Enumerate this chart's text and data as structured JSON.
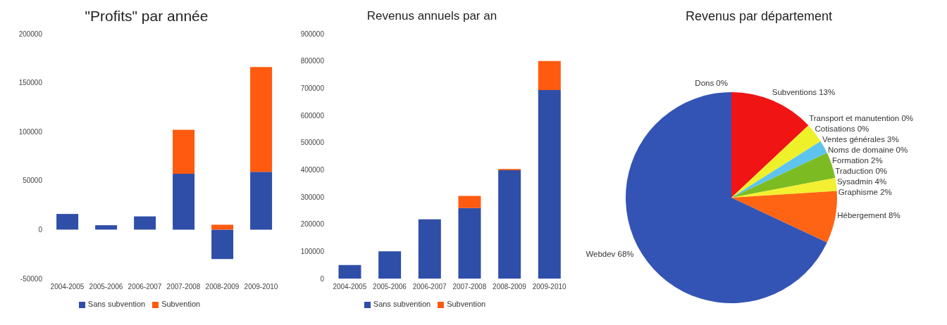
{
  "chart_data": [
    {
      "type": "bar",
      "title": "\"Profits\" par année",
      "categories": [
        "2004-2005",
        "2005-2006",
        "2006-2007",
        "2007-2008",
        "2008-2009",
        "2009-2010"
      ],
      "stacked": true,
      "series": [
        {
          "name": "Sans subvention",
          "color": "#2f4ea8",
          "values": [
            16000,
            4500,
            13500,
            57000,
            -30000,
            59000
          ]
        },
        {
          "name": "Subvention",
          "color": "#ff5a0f",
          "values": [
            null,
            null,
            null,
            45000,
            5000,
            107000
          ]
        }
      ],
      "ylim": [
        -50000,
        200000
      ],
      "yticks": [
        -50000,
        0,
        50000,
        100000,
        150000,
        200000
      ],
      "grid": false,
      "legend": "bottom"
    },
    {
      "type": "bar",
      "title": "Revenus annuels par an",
      "categories": [
        "2004-2005",
        "2005-2006",
        "2006-2007",
        "2007-2008",
        "2008-2009",
        "2009-2010"
      ],
      "stacked": true,
      "series": [
        {
          "name": "Sans subvention",
          "color": "#2f4ea8",
          "values": [
            50000,
            100000,
            218000,
            259000,
            398000,
            693000
          ]
        },
        {
          "name": "Subvention",
          "color": "#ff5a0f",
          "values": [
            null,
            null,
            null,
            45000,
            5000,
            107000
          ]
        }
      ],
      "ylim": [
        0,
        900000
      ],
      "yticks": [
        0,
        100000,
        200000,
        300000,
        400000,
        500000,
        600000,
        700000,
        800000,
        900000
      ],
      "grid": false,
      "legend": "bottom"
    },
    {
      "type": "pie",
      "title": "Revenus par département",
      "categories": [
        "Subventions",
        "Transport et manutention",
        "Cotisations",
        "Ventes générales",
        "Noms de domaine",
        "Formation",
        "Traduction",
        "Sysadmin",
        "Graphisme",
        "Hébergement",
        "Webdev",
        "Dons"
      ],
      "values": [
        13,
        0,
        0,
        3,
        0,
        2,
        0,
        4,
        2,
        8,
        68,
        0
      ],
      "value_labels": [
        "13%",
        "0%",
        "0%",
        "3%",
        "0%",
        "2%",
        "0%",
        "4%",
        "2%",
        "8%",
        "68%",
        "0%"
      ],
      "colors": [
        "#f01414",
        "#8a6a20",
        "#c0c0c0",
        "#eef02a",
        "#202020",
        "#5ec4ee",
        "#303030",
        "#7cbc22",
        "#f2f030",
        "#ff6414",
        "#3354b4",
        "#2040a0"
      ]
    }
  ]
}
